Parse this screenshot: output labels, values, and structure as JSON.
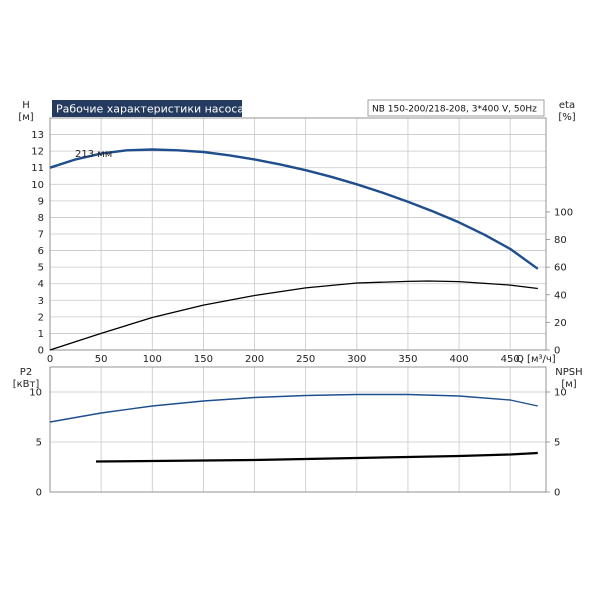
{
  "chart_title": "Рабочие характеристики насоса",
  "model_label": "NB 150-200/218-208, 3*400 V, 50Hz",
  "colors": {
    "title_bg": "#243a5e",
    "grid": "#c8c8c8",
    "frame": "#8a8a8a",
    "head_curve": "#1f4e8c",
    "eff_curve": "#000000",
    "p2_curve": "#1f4e8c",
    "npsh_curve": "#000000"
  },
  "chart_data": [
    {
      "type": "line",
      "panel": "top",
      "xlabel": "Q [м³/ч]",
      "ylabel": "H [м]",
      "ylabel_right": "eta [%]",
      "x_ticks": [
        0,
        50,
        100,
        150,
        200,
        250,
        300,
        350,
        400,
        450
      ],
      "xlim": [
        0,
        485
      ],
      "ylim": [
        0,
        14
      ],
      "y_ticks": [
        0,
        1,
        2,
        3,
        4,
        5,
        6,
        7,
        8,
        9,
        10,
        11,
        12,
        13
      ],
      "ylim_right": [
        0,
        168
      ],
      "y_ticks_right": [
        0,
        20,
        40,
        60,
        80,
        100
      ],
      "grid": true,
      "series": [
        {
          "name": "213 мм",
          "axis": "left",
          "x": [
            0,
            25,
            50,
            75,
            100,
            125,
            150,
            175,
            200,
            225,
            250,
            275,
            300,
            325,
            350,
            375,
            400,
            425,
            450,
            477
          ],
          "y": [
            11.0,
            11.5,
            11.85,
            12.05,
            12.1,
            12.05,
            11.95,
            11.75,
            11.5,
            11.2,
            10.85,
            10.45,
            10.0,
            9.5,
            8.95,
            8.35,
            7.7,
            6.95,
            6.1,
            4.9
          ]
        },
        {
          "name": "eta",
          "axis": "right",
          "x": [
            0,
            50,
            100,
            150,
            200,
            250,
            300,
            350,
            370,
            400,
            450,
            477
          ],
          "y": [
            0,
            12,
            23.5,
            32.5,
            39.5,
            45,
            48.5,
            49.7,
            50,
            49.5,
            47,
            44.5
          ]
        }
      ]
    },
    {
      "type": "line",
      "panel": "bottom",
      "ylabel": "P2 [кВт]",
      "ylabel_right": "NPSH [м]",
      "xlim": [
        0,
        485
      ],
      "ylim": [
        0,
        12.5
      ],
      "y_ticks": [
        0,
        5,
        10
      ],
      "ylim_right": [
        0,
        12.5
      ],
      "y_ticks_right": [
        0,
        5,
        10
      ],
      "grid": true,
      "series": [
        {
          "name": "P2",
          "axis": "left",
          "x": [
            0,
            50,
            100,
            150,
            200,
            250,
            300,
            350,
            400,
            450,
            477
          ],
          "y": [
            7.0,
            7.9,
            8.6,
            9.1,
            9.45,
            9.65,
            9.75,
            9.75,
            9.6,
            9.2,
            8.6
          ]
        },
        {
          "name": "NPSH",
          "axis": "right",
          "x": [
            45,
            100,
            150,
            200,
            250,
            300,
            350,
            400,
            450,
            477
          ],
          "y": [
            3.05,
            3.1,
            3.15,
            3.2,
            3.3,
            3.4,
            3.5,
            3.6,
            3.75,
            3.9
          ]
        }
      ]
    }
  ]
}
